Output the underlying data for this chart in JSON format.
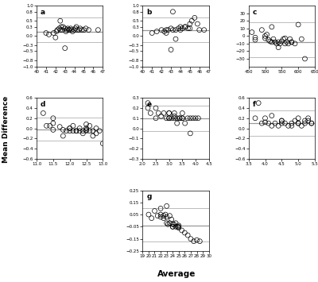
{
  "panels": [
    {
      "label": "a",
      "xlim": [
        40,
        47
      ],
      "ylim": [
        -1.0,
        1.0
      ],
      "xticks": [
        40,
        41,
        42,
        43,
        44,
        45,
        46,
        47
      ],
      "yticks": [
        -1.0,
        -0.8,
        -0.5,
        -0.3,
        0.0,
        0.3,
        0.5,
        0.8,
        1.0
      ],
      "mean_line": 0.15,
      "loa_upper": 0.6,
      "loa_lower": -0.2,
      "x_data": [
        41.0,
        41.3,
        41.8,
        42.0,
        42.1,
        42.2,
        42.4,
        42.5,
        42.6,
        42.7,
        42.8,
        43.0,
        43.1,
        43.2,
        43.3,
        43.4,
        43.5,
        43.6,
        43.7,
        43.8,
        44.0,
        44.1,
        44.2,
        44.3,
        44.5,
        44.6,
        44.8,
        45.0,
        45.2,
        45.5,
        46.5,
        43.0,
        42.5
      ],
      "y_data": [
        0.1,
        0.05,
        0.1,
        -0.05,
        0.15,
        0.2,
        0.25,
        0.2,
        0.3,
        0.2,
        0.3,
        0.25,
        0.15,
        0.2,
        0.25,
        0.2,
        0.2,
        0.25,
        0.2,
        0.15,
        0.2,
        0.25,
        0.3,
        0.2,
        0.2,
        0.25,
        0.2,
        0.2,
        0.25,
        0.2,
        0.2,
        -0.4,
        0.5
      ]
    },
    {
      "label": "b",
      "xlim": [
        40,
        47
      ],
      "ylim": [
        -1.0,
        1.0
      ],
      "xticks": [
        40,
        41,
        42,
        43,
        44,
        45,
        46,
        47
      ],
      "yticks": [
        -1.0,
        -0.8,
        -0.5,
        -0.3,
        0.0,
        0.3,
        0.5,
        0.8,
        1.0
      ],
      "mean_line": 0.2,
      "loa_upper": 0.6,
      "loa_lower": -0.2,
      "x_data": [
        41.0,
        41.5,
        42.0,
        42.3,
        42.5,
        42.7,
        43.0,
        43.2,
        43.5,
        43.8,
        44.0,
        44.2,
        44.5,
        44.8,
        45.0,
        45.2,
        45.5,
        45.8,
        46.0,
        46.5,
        43.0,
        44.0,
        42.5,
        43.5,
        45.0,
        44.5,
        43.2
      ],
      "y_data": [
        0.1,
        0.15,
        0.2,
        0.15,
        0.2,
        0.2,
        0.25,
        0.2,
        0.2,
        0.25,
        0.2,
        0.25,
        0.3,
        0.25,
        0.4,
        0.5,
        0.6,
        0.4,
        0.2,
        0.2,
        -0.45,
        0.3,
        0.1,
        -0.1,
        0.25,
        0.3,
        0.8
      ]
    },
    {
      "label": "c",
      "xlim": [
        450,
        650
      ],
      "ylim": [
        -40,
        40
      ],
      "xticks": [
        450,
        500,
        550,
        600,
        650
      ],
      "yticks": [
        -30,
        -20,
        -10,
        0,
        10,
        20,
        30
      ],
      "mean_line": -8.0,
      "loa_upper": 18.0,
      "loa_lower": -28.0,
      "x_data": [
        460,
        470,
        490,
        500,
        505,
        510,
        515,
        520,
        525,
        530,
        535,
        540,
        545,
        550,
        555,
        560,
        565,
        570,
        575,
        580,
        590,
        600,
        610,
        620,
        500,
        520,
        540,
        560,
        580,
        470
      ],
      "y_data": [
        5,
        -2,
        8,
        -3,
        2,
        -5,
        -7,
        -8,
        -4,
        -8,
        -10,
        -8,
        -10,
        -7,
        -4,
        -10,
        -8,
        -10,
        -4,
        -8,
        -10,
        15,
        -4,
        -30,
        0,
        12,
        -15,
        -3,
        -8,
        -5
      ]
    },
    {
      "label": "d",
      "xlim": [
        11.0,
        13.0
      ],
      "ylim": [
        -0.6,
        0.6
      ],
      "xticks": [
        11.0,
        11.5,
        12.0,
        12.5,
        13.0
      ],
      "yticks": [
        -0.6,
        -0.4,
        -0.2,
        0.0,
        0.2,
        0.4,
        0.6
      ],
      "mean_line": -0.03,
      "loa_upper": 0.22,
      "loa_lower": -0.25,
      "x_data": [
        11.2,
        11.4,
        11.5,
        11.5,
        11.7,
        11.8,
        11.9,
        12.0,
        12.0,
        12.1,
        12.1,
        12.2,
        12.3,
        12.3,
        12.4,
        12.4,
        12.5,
        12.5,
        12.5,
        12.6,
        12.6,
        12.7,
        12.7,
        12.8,
        12.8,
        12.9,
        13.0,
        11.5,
        12.0,
        12.5,
        11.8,
        12.2,
        11.3
      ],
      "y_data": [
        0.3,
        0.05,
        -0.03,
        0.2,
        0.03,
        -0.03,
        -0.05,
        -0.05,
        0.0,
        -0.05,
        0.05,
        -0.05,
        -0.05,
        0.0,
        -0.05,
        -0.1,
        0.0,
        -0.05,
        0.08,
        -0.05,
        0.05,
        -0.05,
        -0.15,
        0.0,
        -0.1,
        -0.05,
        -0.3,
        0.1,
        0.0,
        -0.03,
        -0.15,
        -0.05,
        0.05
      ]
    },
    {
      "label": "e",
      "xlim": [
        2.0,
        4.5
      ],
      "ylim": [
        -0.3,
        0.3
      ],
      "xticks": [
        2.0,
        2.5,
        3.0,
        3.5,
        4.0,
        4.5
      ],
      "yticks": [
        -0.3,
        -0.2,
        -0.1,
        0.0,
        0.1,
        0.2,
        0.3
      ],
      "mean_line": 0.1,
      "loa_upper": 0.22,
      "loa_lower": -0.03,
      "x_data": [
        2.2,
        2.3,
        2.5,
        2.6,
        2.7,
        2.8,
        2.9,
        3.0,
        3.0,
        3.1,
        3.2,
        3.2,
        3.3,
        3.3,
        3.4,
        3.5,
        3.5,
        3.6,
        3.7,
        3.8,
        3.9,
        4.0,
        4.1,
        2.5,
        3.0,
        3.5,
        3.0,
        3.2,
        3.4,
        2.2,
        3.8
      ],
      "y_data": [
        0.2,
        0.15,
        0.1,
        0.15,
        0.12,
        0.15,
        0.1,
        0.1,
        0.15,
        0.1,
        0.1,
        0.15,
        0.1,
        0.05,
        0.1,
        0.1,
        0.15,
        0.05,
        0.1,
        0.1,
        0.1,
        0.1,
        0.1,
        0.2,
        0.15,
        0.1,
        0.1,
        0.12,
        0.1,
        0.25,
        -0.05
      ]
    },
    {
      "label": "f",
      "xlim": [
        3.5,
        5.5
      ],
      "ylim": [
        -0.6,
        0.6
      ],
      "xticks": [
        3.5,
        4.0,
        4.5,
        5.0,
        5.5
      ],
      "yticks": [
        -0.6,
        -0.4,
        -0.2,
        0.0,
        0.2,
        0.4,
        0.6
      ],
      "mean_line": 0.1,
      "loa_upper": 0.35,
      "loa_lower": -0.15,
      "x_data": [
        3.7,
        3.9,
        4.0,
        4.1,
        4.2,
        4.3,
        4.4,
        4.5,
        4.5,
        4.6,
        4.7,
        4.8,
        4.9,
        5.0,
        5.0,
        5.1,
        5.2,
        5.3,
        5.4,
        4.0,
        4.5,
        5.0,
        4.2,
        4.8,
        5.2,
        3.8,
        5.4,
        5.3
      ],
      "y_data": [
        0.2,
        0.1,
        0.12,
        0.1,
        0.05,
        0.1,
        0.05,
        0.1,
        0.15,
        0.1,
        0.05,
        0.1,
        0.15,
        0.1,
        0.2,
        0.05,
        0.1,
        0.15,
        0.1,
        0.2,
        0.15,
        0.1,
        0.25,
        0.05,
        0.15,
        0.5,
        0.1,
        0.2
      ]
    },
    {
      "label": "g",
      "xlim": [
        19,
        30
      ],
      "ylim": [
        -0.25,
        0.25
      ],
      "xticks": [
        19,
        20,
        21,
        22,
        23,
        24,
        25,
        26,
        27,
        28,
        29,
        30
      ],
      "yticks": [
        -0.25,
        -0.15,
        -0.05,
        0.05,
        0.15,
        0.25
      ],
      "mean_line": -0.04,
      "loa_upper": 0.1,
      "loa_lower": -0.17,
      "x_data": [
        20.0,
        20.5,
        21.0,
        21.5,
        22.0,
        22.0,
        22.5,
        22.5,
        22.8,
        23.0,
        23.0,
        23.2,
        23.5,
        23.5,
        23.8,
        24.0,
        24.0,
        24.2,
        24.5,
        24.5,
        24.8,
        25.0,
        25.0,
        25.5,
        26.0,
        26.5,
        27.0,
        27.5,
        28.0,
        28.5,
        22.0,
        23.0,
        24.0,
        25.0
      ],
      "y_data": [
        0.05,
        0.02,
        0.08,
        0.04,
        0.05,
        0.03,
        0.04,
        0.02,
        0.05,
        0.03,
        -0.02,
        -0.03,
        -0.02,
        0.04,
        0.01,
        -0.03,
        -0.05,
        -0.03,
        -0.05,
        -0.02,
        -0.05,
        -0.04,
        -0.06,
        -0.08,
        -0.1,
        -0.12,
        -0.15,
        -0.17,
        -0.16,
        -0.17,
        0.1,
        0.12,
        -0.05,
        -0.05
      ]
    }
  ],
  "ylabel": "Mean Difference",
  "xlabel": "Average",
  "line_color": "#999999",
  "loa_color": "#bbbbbb",
  "marker_size": 6,
  "bg_color": "#ffffff"
}
